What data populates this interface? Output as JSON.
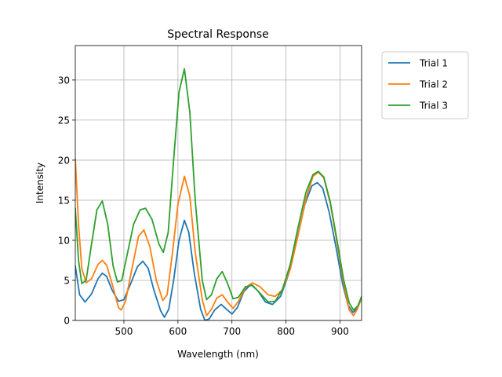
{
  "chart_data": {
    "type": "line",
    "title": "Spectral Response",
    "xlabel": "Wavelength (nm)",
    "ylabel": "Intensity",
    "xlim": [
      410,
      940
    ],
    "ylim": [
      0,
      34.3
    ],
    "xticks": [
      500,
      600,
      700,
      800,
      900
    ],
    "yticks": [
      0,
      5,
      10,
      15,
      20,
      25,
      30
    ],
    "grid": true,
    "legend_position": "outside-top-right",
    "series": [
      {
        "name": "Trial 1",
        "color": "#1f77b4",
        "points": [
          [
            410,
            6.8
          ],
          [
            418,
            3.2
          ],
          [
            428,
            2.3
          ],
          [
            440,
            3.3
          ],
          [
            452,
            5.2
          ],
          [
            460,
            5.9
          ],
          [
            468,
            5.5
          ],
          [
            478,
            3.8
          ],
          [
            490,
            2.4
          ],
          [
            500,
            2.6
          ],
          [
            512,
            4.5
          ],
          [
            525,
            6.7
          ],
          [
            535,
            7.4
          ],
          [
            545,
            6.5
          ],
          [
            555,
            3.9
          ],
          [
            568,
            1.2
          ],
          [
            575,
            0.4
          ],
          [
            583,
            1.4
          ],
          [
            592,
            5.0
          ],
          [
            602,
            10.0
          ],
          [
            612,
            12.5
          ],
          [
            620,
            11.0
          ],
          [
            630,
            6.0
          ],
          [
            642,
            1.4
          ],
          [
            650,
            0.0
          ],
          [
            658,
            0.2
          ],
          [
            668,
            1.3
          ],
          [
            680,
            2.0
          ],
          [
            690,
            1.4
          ],
          [
            700,
            0.8
          ],
          [
            710,
            1.6
          ],
          [
            722,
            3.6
          ],
          [
            735,
            4.5
          ],
          [
            748,
            3.7
          ],
          [
            762,
            2.3
          ],
          [
            775,
            2.0
          ],
          [
            790,
            3.0
          ],
          [
            805,
            5.8
          ],
          [
            820,
            10.0
          ],
          [
            835,
            14.5
          ],
          [
            848,
            16.8
          ],
          [
            858,
            17.2
          ],
          [
            868,
            16.5
          ],
          [
            880,
            13.5
          ],
          [
            893,
            9.0
          ],
          [
            905,
            4.5
          ],
          [
            915,
            1.9
          ],
          [
            924,
            1.0
          ],
          [
            932,
            1.5
          ],
          [
            940,
            2.8
          ]
        ]
      },
      {
        "name": "Trial 2",
        "color": "#ff7f0e",
        "points": [
          [
            410,
            20.2
          ],
          [
            416,
            12.0
          ],
          [
            422,
            6.5
          ],
          [
            430,
            4.7
          ],
          [
            440,
            5.2
          ],
          [
            452,
            7.0
          ],
          [
            460,
            7.5
          ],
          [
            468,
            6.9
          ],
          [
            478,
            4.6
          ],
          [
            490,
            1.6
          ],
          [
            495,
            1.3
          ],
          [
            503,
            2.4
          ],
          [
            515,
            6.5
          ],
          [
            527,
            10.5
          ],
          [
            537,
            11.3
          ],
          [
            548,
            9.2
          ],
          [
            560,
            5.0
          ],
          [
            572,
            2.5
          ],
          [
            580,
            3.2
          ],
          [
            590,
            8.5
          ],
          [
            600,
            14.5
          ],
          [
            612,
            18.0
          ],
          [
            622,
            15.5
          ],
          [
            632,
            8.5
          ],
          [
            645,
            2.6
          ],
          [
            653,
            0.6
          ],
          [
            662,
            1.4
          ],
          [
            672,
            2.8
          ],
          [
            682,
            3.2
          ],
          [
            692,
            2.3
          ],
          [
            702,
            1.5
          ],
          [
            712,
            2.4
          ],
          [
            725,
            4.1
          ],
          [
            738,
            4.7
          ],
          [
            752,
            4.2
          ],
          [
            767,
            3.2
          ],
          [
            780,
            3.0
          ],
          [
            793,
            3.8
          ],
          [
            808,
            6.4
          ],
          [
            822,
            10.5
          ],
          [
            837,
            15.2
          ],
          [
            850,
            18.0
          ],
          [
            860,
            18.5
          ],
          [
            870,
            17.8
          ],
          [
            882,
            14.6
          ],
          [
            895,
            9.5
          ],
          [
            907,
            4.5
          ],
          [
            917,
            1.3
          ],
          [
            925,
            0.6
          ],
          [
            932,
            1.4
          ],
          [
            940,
            2.8
          ]
        ]
      },
      {
        "name": "Trial 3",
        "color": "#2ca02c",
        "points": [
          [
            410,
            14.0
          ],
          [
            416,
            7.5
          ],
          [
            422,
            4.6
          ],
          [
            430,
            5.0
          ],
          [
            440,
            9.5
          ],
          [
            450,
            13.8
          ],
          [
            460,
            14.9
          ],
          [
            470,
            12.0
          ],
          [
            480,
            6.8
          ],
          [
            488,
            4.8
          ],
          [
            496,
            5.0
          ],
          [
            506,
            8.2
          ],
          [
            518,
            12.0
          ],
          [
            530,
            13.8
          ],
          [
            540,
            14.0
          ],
          [
            552,
            12.6
          ],
          [
            565,
            9.5
          ],
          [
            573,
            8.5
          ],
          [
            582,
            11.0
          ],
          [
            592,
            20.0
          ],
          [
            602,
            28.5
          ],
          [
            612,
            31.4
          ],
          [
            622,
            26.0
          ],
          [
            632,
            15.0
          ],
          [
            645,
            5.0
          ],
          [
            653,
            2.6
          ],
          [
            662,
            3.2
          ],
          [
            672,
            5.2
          ],
          [
            682,
            6.1
          ],
          [
            692,
            4.6
          ],
          [
            702,
            2.7
          ],
          [
            712,
            2.9
          ],
          [
            725,
            4.2
          ],
          [
            738,
            4.4
          ],
          [
            752,
            3.4
          ],
          [
            767,
            2.3
          ],
          [
            780,
            2.4
          ],
          [
            793,
            3.8
          ],
          [
            808,
            7.0
          ],
          [
            822,
            11.5
          ],
          [
            837,
            16.0
          ],
          [
            850,
            18.2
          ],
          [
            860,
            18.6
          ],
          [
            870,
            17.9
          ],
          [
            882,
            14.8
          ],
          [
            895,
            9.8
          ],
          [
            907,
            5.0
          ],
          [
            917,
            2.2
          ],
          [
            925,
            1.3
          ],
          [
            933,
            1.8
          ],
          [
            940,
            3.0
          ]
        ]
      }
    ]
  }
}
